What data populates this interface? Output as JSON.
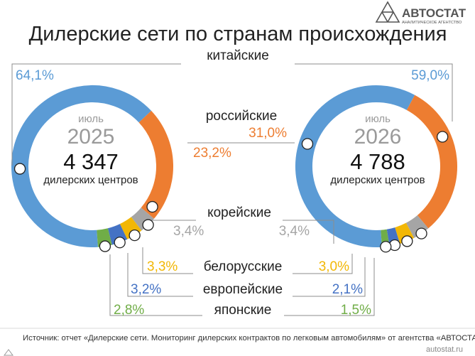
{
  "title": "Дилерские сети по странам происхождения",
  "logo": {
    "name": "АВТОСТАТ",
    "tagline": "АНАЛИТИЧЕСКОЕ АГЕНТСТВО"
  },
  "source": "Источник: отчет «Дилерские сети. Мониторинг дилерских контрактов по легковым автомобилям» от агентства «АВТОСТАТ»",
  "site": "autostat.ru",
  "colors": {
    "chinese": "#5b9bd5",
    "russian": "#ed7d31",
    "korean": "#a5a5a5",
    "belarusian": "#f2b705",
    "european": "#4472c4",
    "japanese": "#70ad47",
    "text_dark": "#222222",
    "text_gray": "#9a9a9a",
    "line": "#8c8c8c"
  },
  "chart_data": {
    "type": "donut",
    "categories": [
      "китайские",
      "российские",
      "корейские",
      "белорусские",
      "европейские",
      "японские"
    ],
    "series": [
      {
        "name": "июль 2025",
        "period_label": "июль",
        "year": "2025",
        "total": "4 347",
        "total_label": "дилерских центров",
        "values": [
          64.1,
          23.2,
          3.4,
          3.3,
          3.2,
          2.8
        ],
        "value_labels": [
          "64,1%",
          "23,2%",
          "3,4%",
          "3,3%",
          "3,2%",
          "2,8%"
        ]
      },
      {
        "name": "июль 2026",
        "period_label": "июль",
        "year": "2026",
        "total": "4 788",
        "total_label": "дилерских центров",
        "values": [
          59.0,
          31.0,
          3.4,
          3.0,
          2.1,
          1.5
        ],
        "value_labels": [
          "59,0%",
          "31,0%",
          "3,4%",
          "3,0%",
          "2,1%",
          "1,5%"
        ]
      }
    ]
  }
}
